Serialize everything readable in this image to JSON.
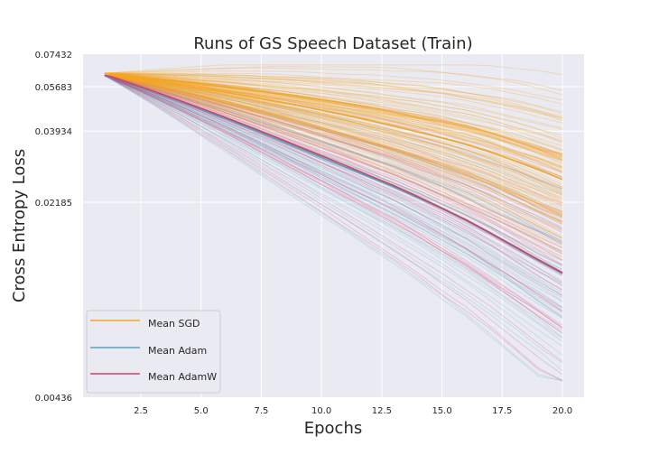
{
  "chart_data": {
    "type": "line",
    "title": "Runs of GS Speech Dataset (Train)",
    "xlabel": "Epochs",
    "ylabel": "Cross Entropy Loss",
    "xlim": [
      0.1,
      20.9
    ],
    "ylim": [
      0.00436,
      0.07432
    ],
    "yscale": "log",
    "xticks": [
      2.5,
      5.0,
      7.5,
      10.0,
      12.5,
      15.0,
      17.5,
      20.0
    ],
    "xtick_labels": [
      "2.5",
      "5.0",
      "7.5",
      "10.0",
      "12.5",
      "15.0",
      "17.5",
      "20.0"
    ],
    "yticks": [
      0.00436,
      0.02185,
      0.03934,
      0.05683,
      0.07432
    ],
    "ytick_labels": [
      "0.00436",
      "0.02185",
      "0.03934",
      "0.05683",
      "0.07432"
    ],
    "grid": true,
    "legend_position": "lower-left",
    "x": [
      1,
      2,
      3,
      4,
      5,
      6,
      7,
      8,
      9,
      10,
      11,
      12,
      13,
      14,
      15,
      16,
      17,
      18,
      19,
      20
    ],
    "series": [
      {
        "name": "Mean SGD",
        "color": "#f5a623",
        "values": [
          0.0635,
          0.0615,
          0.0596,
          0.0578,
          0.056,
          0.0542,
          0.0524,
          0.0505,
          0.0487,
          0.0468,
          0.0449,
          0.043,
          0.041,
          0.0391,
          0.0372,
          0.0352,
          0.0331,
          0.0308,
          0.0286,
          0.0264
        ]
      },
      {
        "name": "Mean Adam",
        "color": "#5aa2c0",
        "values": [
          0.0622,
          0.0583,
          0.0545,
          0.0507,
          0.047,
          0.0436,
          0.0403,
          0.0372,
          0.0343,
          0.0316,
          0.0292,
          0.0269,
          0.0248,
          0.0227,
          0.0207,
          0.0188,
          0.0169,
          0.0151,
          0.0135,
          0.0121
        ]
      },
      {
        "name": "Mean AdamW",
        "color": "#cf3f6e",
        "values": [
          0.0625,
          0.0586,
          0.0548,
          0.0511,
          0.0475,
          0.0441,
          0.0408,
          0.0377,
          0.0348,
          0.0321,
          0.0296,
          0.0272,
          0.0251,
          0.0229,
          0.0208,
          0.0189,
          0.017,
          0.0152,
          0.0136,
          0.0122
        ]
      }
    ]
  }
}
